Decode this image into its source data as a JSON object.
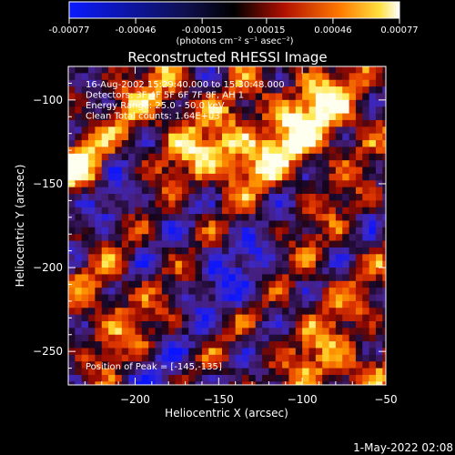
{
  "colorbar": {
    "ticks": [
      "-0.00077",
      "-0.00046",
      "-0.00015",
      "0.00015",
      "0.00046",
      "0.00077"
    ],
    "units": "(photons cm⁻² s⁻¹ asec⁻²)",
    "range": [
      -0.00077,
      0.00077
    ],
    "colors": {
      "low": "#0a1aff",
      "mid": "#000000",
      "high": "#ffffff"
    }
  },
  "chart_data": {
    "type": "heatmap",
    "title": "Reconstructed RHESSI Image",
    "xlabel": "Heliocentric X (arcsec)",
    "ylabel": "Heliocentric Y (arcsec)",
    "xlim": [
      -240,
      -50
    ],
    "ylim": [
      -270,
      -80
    ],
    "xticks": [
      -200,
      -150,
      -100,
      -50
    ],
    "yticks": [
      -100,
      -150,
      -200,
      -250
    ],
    "info_lines": [
      "16-Aug-2002 15:29:40.000 to 15:30:48.000",
      "Detectors: 3F 4F 5F 6F 7F 8F, AH 1",
      "Energy Range: 25.0 - 50.0 keV",
      "Clean    Total counts: 1.64E+03"
    ],
    "peak_label": "Position of Peak = [-145,-135]",
    "peak": [
      -145,
      -135
    ],
    "pixel_size_arcsec": 4
  },
  "footer": {
    "timestamp": "1-May-2022 02:08"
  }
}
